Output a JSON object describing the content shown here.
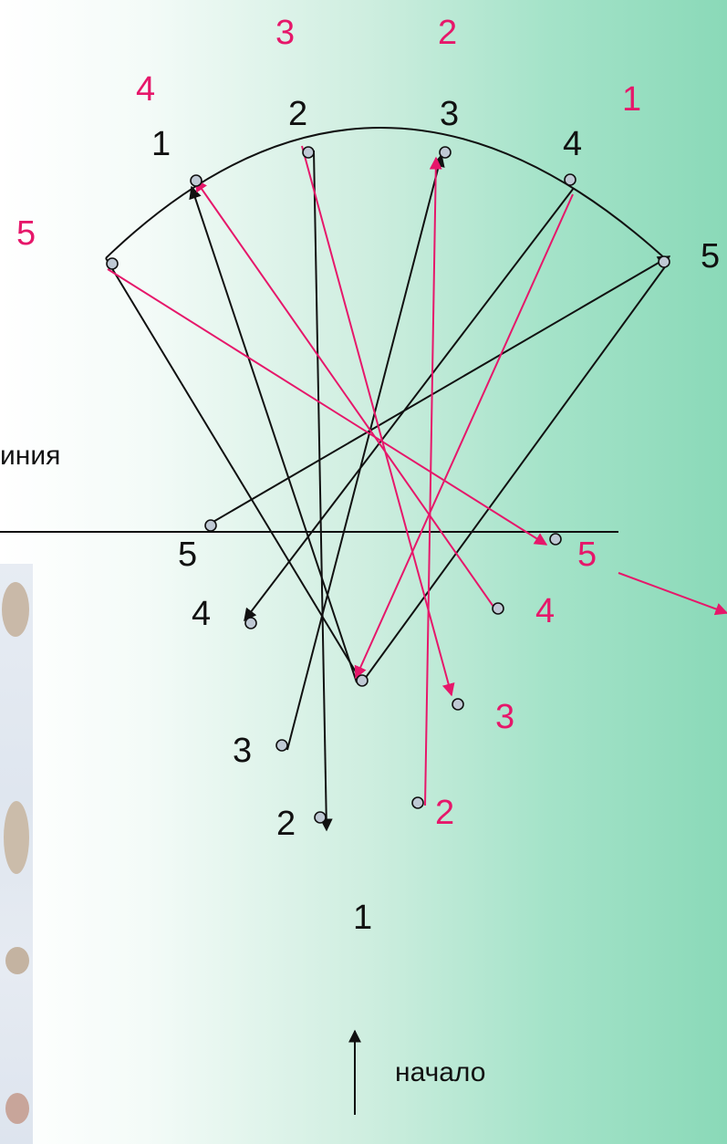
{
  "colors": {
    "black_path": "#111111",
    "pink_path": "#e6176a",
    "point_fill": "#bfc9d4"
  },
  "labels": {
    "arc": {
      "black": [
        "1",
        "2",
        "3",
        "4",
        "5"
      ],
      "pink": [
        "4",
        "3",
        "2",
        "1",
        "5"
      ]
    },
    "left_side": [
      "5",
      "4",
      "3",
      "2"
    ],
    "right_side": [
      "5",
      "4",
      "3",
      "2"
    ],
    "apex": "1",
    "line_word": "иния",
    "start_word": "начало"
  }
}
